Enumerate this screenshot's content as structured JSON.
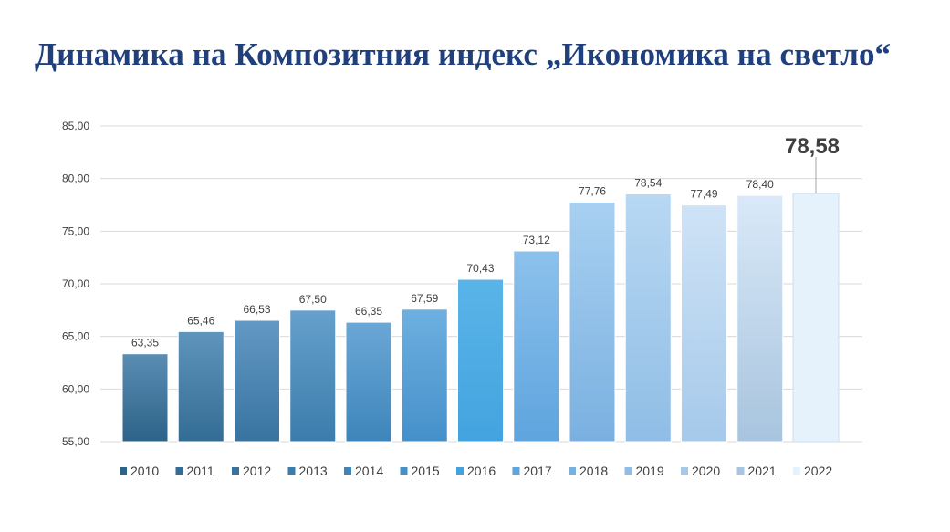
{
  "title": "Динамика на Композитния индекс „Икономика на светло“",
  "chart_data": {
    "type": "bar",
    "title": "",
    "xlabel": "",
    "ylabel": "",
    "ylim": [
      55,
      85
    ],
    "yticks": [
      "55,00",
      "60,00",
      "65,00",
      "70,00",
      "75,00",
      "80,00",
      "85,00"
    ],
    "grid": true,
    "legend_position": "bottom",
    "categories": [
      "2010",
      "2011",
      "2012",
      "2013",
      "2014",
      "2015",
      "2016",
      "2017",
      "2018",
      "2019",
      "2020",
      "2021",
      "2022"
    ],
    "values": [
      63.35,
      65.46,
      66.53,
      67.5,
      66.35,
      67.59,
      70.43,
      73.12,
      77.76,
      78.54,
      77.49,
      78.4,
      78.58
    ],
    "value_labels": [
      "63,35",
      "65,46",
      "66,53",
      "67,50",
      "66,35",
      "67,59",
      "70,43",
      "73,12",
      "77,76",
      "78,54",
      "77,49",
      "78,40",
      "78,58"
    ],
    "highlighted_category": "2022",
    "colors": [
      {
        "top": "#5b8db3",
        "bottom": "#2d6388"
      },
      {
        "top": "#5f95bd",
        "bottom": "#336c94"
      },
      {
        "top": "#6399c4",
        "bottom": "#3873a0"
      },
      {
        "top": "#66a0cc",
        "bottom": "#3b7cac"
      },
      {
        "top": "#6aa7d6",
        "bottom": "#3e85bb"
      },
      {
        "top": "#6eb0e0",
        "bottom": "#4590ca"
      },
      {
        "top": "#5ab4e8",
        "bottom": "#43a3df"
      },
      {
        "top": "#8cc1ec",
        "bottom": "#5ea4de"
      },
      {
        "top": "#a8d0f1",
        "bottom": "#7ab0e0"
      },
      {
        "top": "#b8d8f3",
        "bottom": "#8fbde5"
      },
      {
        "top": "#cfe3f6",
        "bottom": "#a5c9ea"
      },
      {
        "top": "#d9e9f8",
        "bottom": "#a8c4de"
      },
      {
        "top": "#e6f2fb",
        "bottom": "#e6f2fb"
      }
    ]
  }
}
